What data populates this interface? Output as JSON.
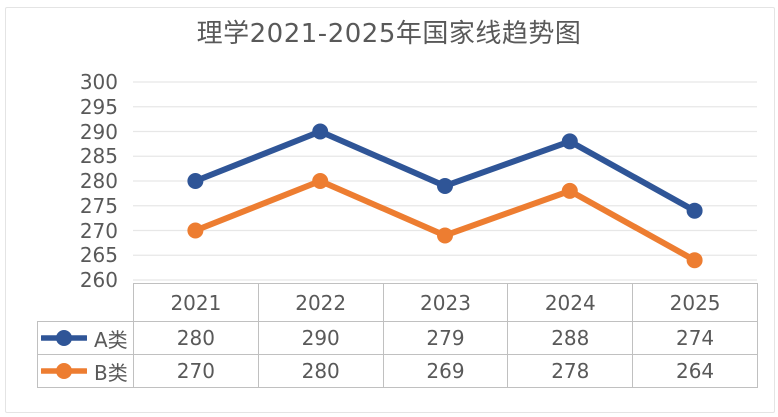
{
  "title": "理学2021-2025年国家线趋势图",
  "chart_data": {
    "type": "line",
    "title": "理学2021-2025年国家线趋势图",
    "categories": [
      "2021",
      "2022",
      "2023",
      "2024",
      "2025"
    ],
    "series": [
      {
        "name": "A类",
        "color": "#2F5597",
        "values": [
          280,
          290,
          279,
          288,
          274
        ]
      },
      {
        "name": "B类",
        "color": "#ED7D31",
        "values": [
          270,
          280,
          269,
          278,
          264
        ]
      }
    ],
    "ylim": [
      260,
      300
    ],
    "ytick_step": 5,
    "ytick_labels": [
      "300",
      "295",
      "290",
      "285",
      "280",
      "275",
      "270",
      "265",
      "260"
    ],
    "grid": true,
    "vertical_gridlines": false,
    "legend_position": "data-table-row-headers",
    "data_table_shown": true
  },
  "colors": {
    "text": "#595959",
    "gridline": "#e7e7e7",
    "table_border": "#c0c0c0",
    "frame_border": "#e4e4e4",
    "background": "#ffffff",
    "series_a": "#2F5597",
    "series_b": "#ED7D31"
  }
}
